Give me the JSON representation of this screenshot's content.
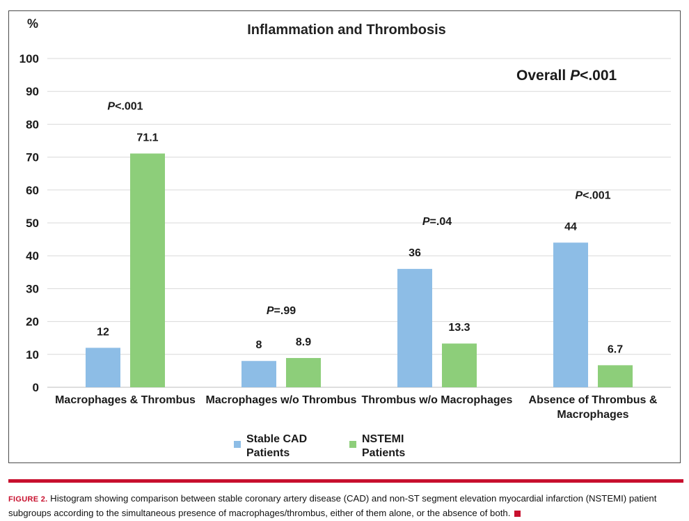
{
  "figure": {
    "caption_label": "FIGURE 2.",
    "caption_text": "Histogram showing comparison between stable coronary artery disease (CAD) and non-ST segment elevation myocardial infarction (NSTEMI) patient subgroups according to the simultaneous presence of macrophages/thrombus, either of them alone, or the absence of both."
  },
  "colors": {
    "stable": "#8dbde6",
    "nstemi": "#8dce7a",
    "accent_red": "#c8102e",
    "grid": "#d9d9d9"
  },
  "chart_data": {
    "type": "bar",
    "title": "Inflammation and Thrombosis",
    "ylabel": "%",
    "ylim": [
      0,
      100
    ],
    "yticks": [
      0,
      10,
      20,
      30,
      40,
      50,
      60,
      70,
      80,
      90,
      100
    ],
    "grid": true,
    "legend_position": "bottom-center",
    "categories": [
      [
        "Macrophages & Thrombus"
      ],
      [
        "Macrophages w/o Thrombus"
      ],
      [
        "Thrombus w/o Macrophages"
      ],
      [
        "Absence of Thrombus &",
        "Macrophages"
      ]
    ],
    "series": [
      {
        "name": [
          "Stable CAD",
          "Patients"
        ],
        "values": [
          12,
          8,
          36,
          44
        ],
        "labels": [
          "12",
          "8",
          "36",
          "44"
        ]
      },
      {
        "name": [
          "NSTEMI",
          "Patients"
        ],
        "values": [
          71.1,
          8.9,
          13.3,
          6.7
        ],
        "labels": [
          "71.1",
          "8.9",
          "13.3",
          "6.7"
        ]
      }
    ],
    "annotations": {
      "overall_prefix": "Overall ",
      "overall_p": "P",
      "overall_value": "<.001",
      "p_letter": "P",
      "group_p_values": [
        "<.001",
        "=.99",
        "=.04",
        "<.001"
      ]
    }
  }
}
